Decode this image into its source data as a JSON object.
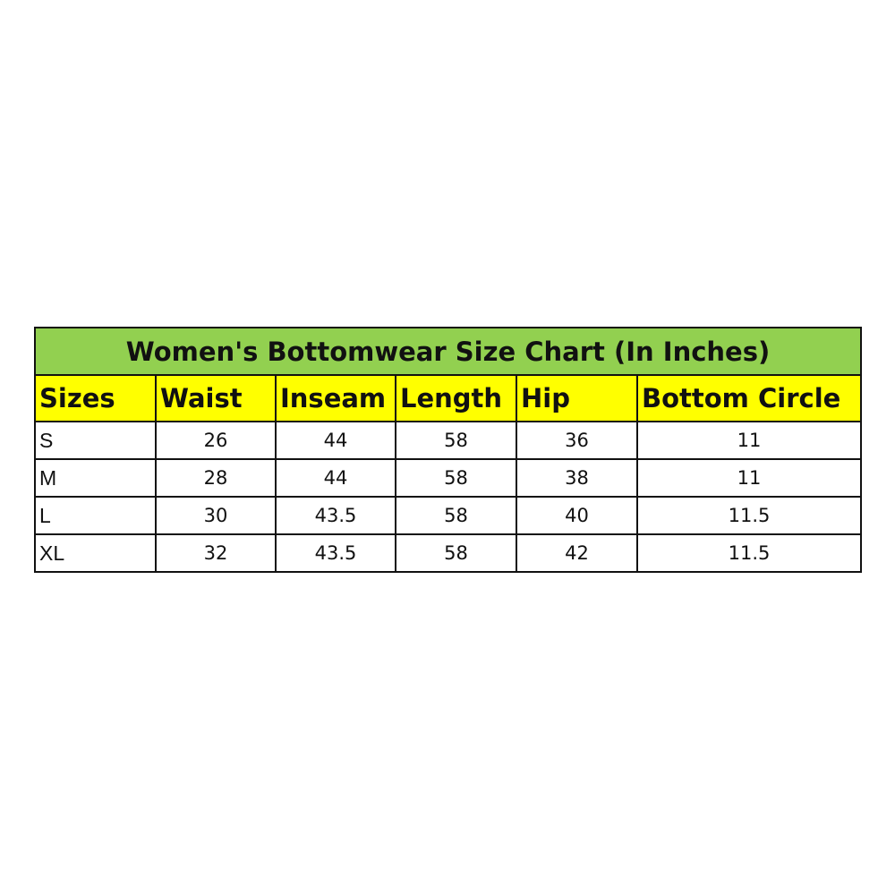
{
  "title": "Women's Bottomwear Size Chart (In Inches)",
  "headers": [
    "Sizes",
    "Waist",
    "Inseam",
    "Length",
    "Hip",
    "Bottom Circle"
  ],
  "rows": [
    [
      "S",
      "26",
      "44",
      "58",
      "36",
      "11"
    ],
    [
      "M",
      "28",
      "44",
      "58",
      "38",
      "11"
    ],
    [
      "L",
      "30",
      "43.5",
      "58",
      "40",
      "11.5"
    ],
    [
      "XL",
      "32",
      "43.5",
      "58",
      "42",
      "11.5"
    ]
  ],
  "colors": {
    "title_bg": "#92d050",
    "header_bg": "#ffff00"
  }
}
